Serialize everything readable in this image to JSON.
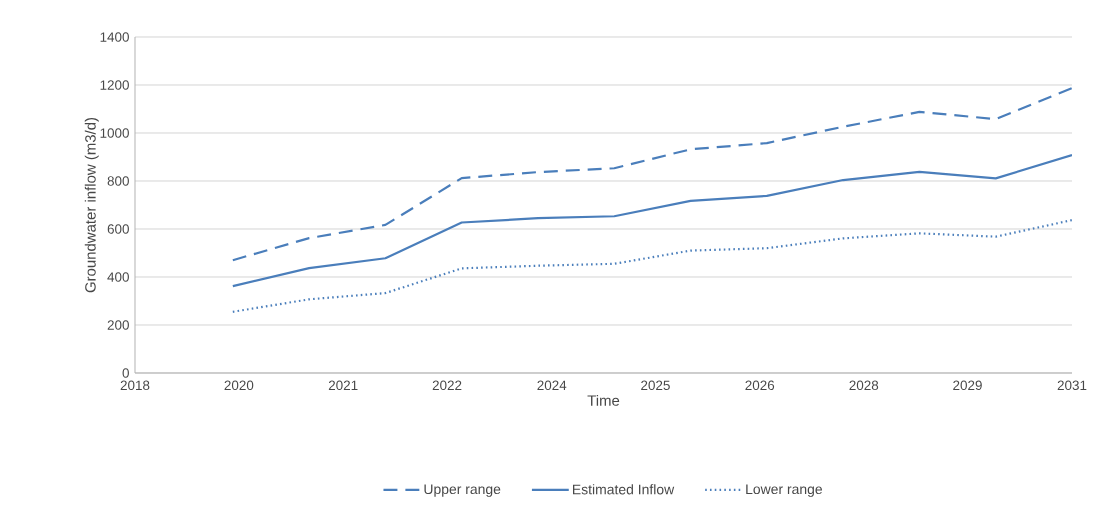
{
  "chart_data": {
    "type": "line",
    "xlabel": "Time",
    "ylabel": "Groundwater  inflow  (m3/d)",
    "x": [
      "2020",
      "2021",
      "2022",
      "2023",
      "2024",
      "2025",
      "2026",
      "2027",
      "2028",
      "2029",
      "2030",
      "2031"
    ],
    "series": [
      {
        "name": "Upper range",
        "color": "#4a7ebb",
        "line_style": "dashed",
        "values": [
          470,
          562,
          617,
          812,
          837,
          853,
          932,
          958,
          1026,
          1088,
          1058,
          1187
        ]
      },
      {
        "name": "Estimated Inflow",
        "color": "#4a7ebb",
        "line_style": "solid",
        "values": [
          362,
          437,
          478,
          627,
          645,
          653,
          717,
          738,
          804,
          838,
          811,
          908
        ]
      },
      {
        "name": "Lower range",
        "color": "#4a7ebb",
        "line_style": "dotted",
        "values": [
          255,
          307,
          333,
          436,
          447,
          455,
          510,
          520,
          561,
          582,
          568,
          637
        ]
      }
    ],
    "xlim": [
      "2018-09-20",
      "2031"
    ],
    "xticks": [
      {
        "value": "2018-09-20",
        "label": "2018"
      },
      {
        "value": "2020-01-30",
        "label": "2020"
      },
      {
        "value": "2021-06-13",
        "label": "2021"
      },
      {
        "value": "2022-10-23",
        "label": "2022"
      },
      {
        "value": "2024-03-07",
        "label": "2024"
      },
      {
        "value": "2025-07-17",
        "label": "2025"
      },
      {
        "value": "2026-11-28",
        "label": "2026"
      },
      {
        "value": "2028-04-09",
        "label": "2028"
      },
      {
        "value": "2029-08-19",
        "label": "2029"
      },
      {
        "value": "2031",
        "label": "2031"
      }
    ],
    "ylim": [
      0,
      1400
    ],
    "yticks": [
      0,
      200,
      400,
      600,
      800,
      1000,
      1200,
      1400
    ],
    "grid": "y",
    "legend": "bottom"
  }
}
